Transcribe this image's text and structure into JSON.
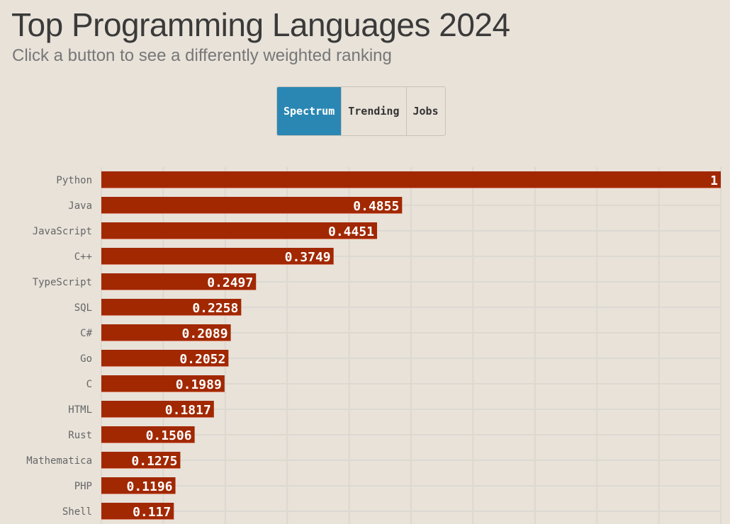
{
  "header": {
    "title": "Top Programming Languages 2024",
    "subtitle": "Click a button to see a differently weighted ranking"
  },
  "buttons": [
    {
      "label": "Spectrum",
      "active": true
    },
    {
      "label": "Trending",
      "active": false
    },
    {
      "label": "Jobs",
      "active": false
    }
  ],
  "colors": {
    "bar": "#a12800",
    "active_button": "#2a87b4",
    "background": "#e8e2d9",
    "grid": "#dcd8d2"
  },
  "chart_data": {
    "type": "bar",
    "orientation": "horizontal",
    "title": "Top Programming Languages 2024",
    "categories": [
      "Python",
      "Java",
      "JavaScript",
      "C++",
      "TypeScript",
      "SQL",
      "C#",
      "Go",
      "C",
      "HTML",
      "Rust",
      "Mathematica",
      "PHP",
      "Shell"
    ],
    "values": [
      1,
      0.4855,
      0.4451,
      0.3749,
      0.2497,
      0.2258,
      0.2089,
      0.2052,
      0.1989,
      0.1817,
      0.1506,
      0.1275,
      0.1196,
      0.117
    ],
    "xlim": [
      0,
      1
    ],
    "grid": true
  }
}
